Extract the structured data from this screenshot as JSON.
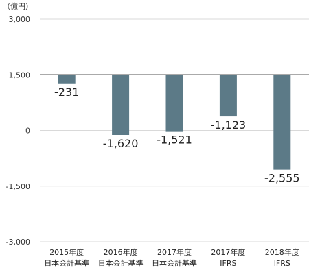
{
  "chart_data": {
    "type": "bar",
    "unit": "（億円）",
    "categories": [
      [
        "2015年度",
        "日本会計基準"
      ],
      [
        "2016年度",
        "日本会計基準"
      ],
      [
        "2017年度",
        "日本会計基準"
      ],
      [
        "2017年度",
        "IFRS"
      ],
      [
        "2018年度",
        "IFRS"
      ]
    ],
    "values": [
      -231,
      -1620,
      -1521,
      -1123,
      -2555
    ],
    "value_labels": [
      "-231",
      "-1,620",
      "-1,521",
      "-1,123",
      "-2,555"
    ],
    "baseline": 1500,
    "ylim": [
      -3000,
      3000
    ],
    "yticks": [
      3000,
      1500,
      0,
      -1500,
      -3000
    ],
    "ytick_labels": [
      "3,000",
      "1,500",
      "0",
      "-1,500",
      "-3,000"
    ],
    "grid": true,
    "colors": {
      "bar": "#5c7a87",
      "grid": "#d9d9d9",
      "baseline": "#222222"
    }
  }
}
